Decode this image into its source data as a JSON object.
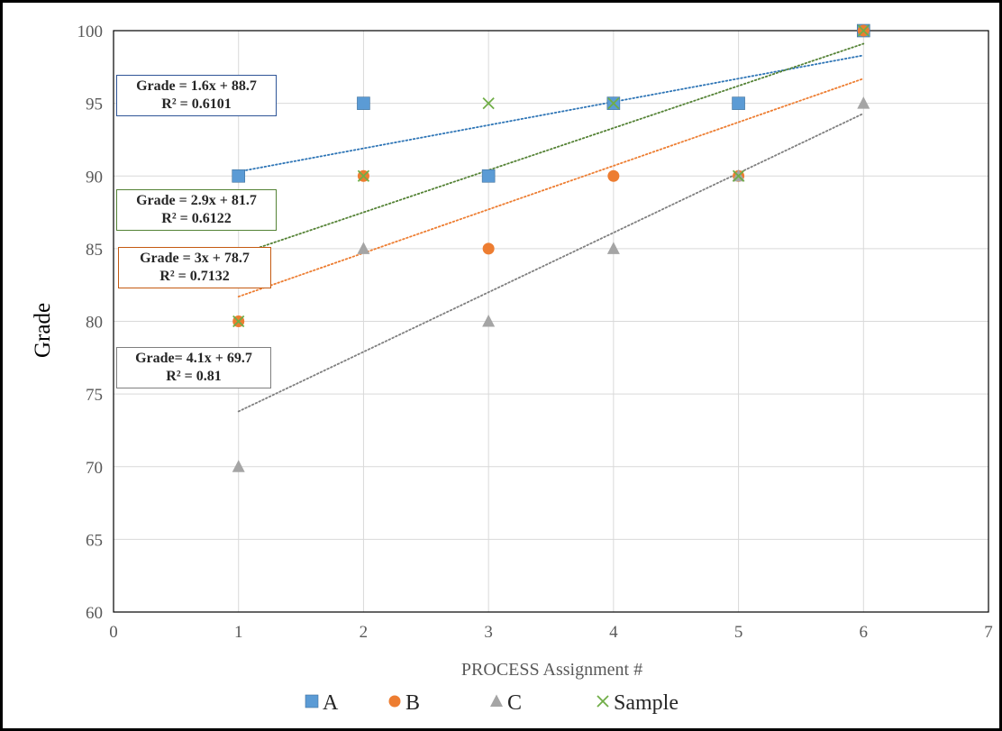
{
  "chart_data": {
    "type": "scatter",
    "xlabel": "PROCESS Assignment #",
    "ylabel": "Grade",
    "xlim": [
      0,
      7
    ],
    "ylim": [
      60,
      100
    ],
    "x_ticks": [
      0,
      1,
      2,
      3,
      4,
      5,
      6,
      7
    ],
    "y_ticks": [
      60,
      65,
      70,
      75,
      80,
      85,
      90,
      95,
      100
    ],
    "grid": true,
    "legend_position": "bottom",
    "series": [
      {
        "name": "A",
        "marker": "square",
        "color": "#5B9BD5",
        "line_color": "#2E75B6",
        "x": [
          1,
          2,
          3,
          4,
          5,
          6
        ],
        "y": [
          90,
          95,
          90,
          95,
          95,
          100
        ],
        "trendline": {
          "slope": 1.6,
          "intercept": 88.7,
          "equation": "Grade = 1.6x + 88.7",
          "r2": "R² = 0.6101",
          "box_color": "#2F5597"
        }
      },
      {
        "name": "B",
        "marker": "circle",
        "color": "#ED7D31",
        "line_color": "#ED7D31",
        "x": [
          1,
          2,
          3,
          4,
          5,
          6
        ],
        "y": [
          80,
          90,
          85,
          90,
          90,
          100
        ],
        "trendline": {
          "slope": 3,
          "intercept": 78.7,
          "equation": "Grade = 3x + 78.7",
          "r2": "R² = 0.7132",
          "box_color": "#C55A11"
        }
      },
      {
        "name": "C",
        "marker": "triangle",
        "color": "#A5A5A5",
        "line_color": "#7F7F7F",
        "x": [
          1,
          2,
          3,
          4,
          5,
          6
        ],
        "y": [
          70,
          85,
          80,
          85,
          90,
          95
        ],
        "trendline": {
          "slope": 4.1,
          "intercept": 69.7,
          "equation": "Grade= 4.1x + 69.7",
          "r2": "R² = 0.81",
          "box_color": "#7F7F7F"
        }
      },
      {
        "name": "Sample",
        "marker": "x",
        "color": "#70AD47",
        "line_color": "#548235",
        "x": [
          1,
          2,
          3,
          4,
          5,
          6
        ],
        "y": [
          80,
          90,
          95,
          95,
          90,
          100
        ],
        "trendline": {
          "slope": 2.9,
          "intercept": 81.7,
          "equation": "Grade = 2.9x + 81.7",
          "r2": "R² = 0.6122",
          "box_color": "#548235"
        }
      }
    ]
  }
}
